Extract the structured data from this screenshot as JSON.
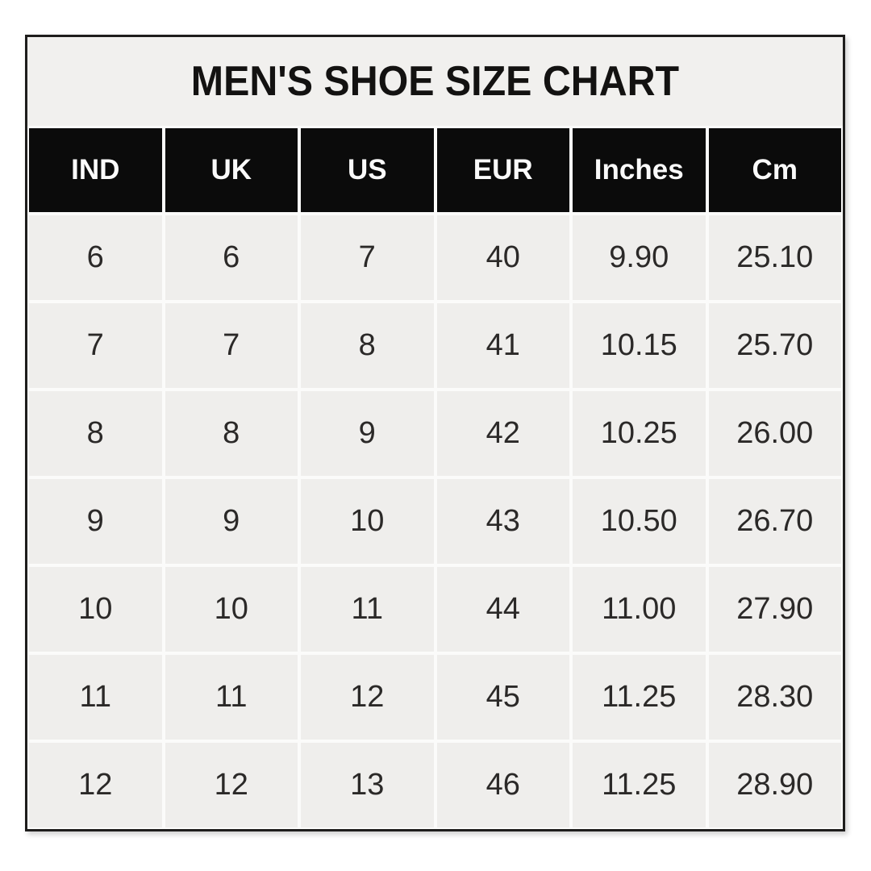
{
  "colors": {
    "page_bg": "#ffffff",
    "title_bg": "#f1f0ee",
    "title_text": "#131211",
    "header_bg": "#0b0b0b",
    "header_text": "#fafafa",
    "cell_bg": "#efeeec",
    "cell_text": "#2b2928",
    "gap": "#fbfbfa",
    "border": "#1e1d1c"
  },
  "chart_data": {
    "type": "table",
    "title": "MEN'S SHOE SIZE CHART",
    "columns": [
      "IND",
      "UK",
      "US",
      "EUR",
      "Inches",
      "Cm"
    ],
    "rows": [
      [
        "6",
        "6",
        "7",
        "40",
        "9.90",
        "25.10"
      ],
      [
        "7",
        "7",
        "8",
        "41",
        "10.15",
        "25.70"
      ],
      [
        "8",
        "8",
        "9",
        "42",
        "10.25",
        "26.00"
      ],
      [
        "9",
        "9",
        "10",
        "43",
        "10.50",
        "26.70"
      ],
      [
        "10",
        "10",
        "11",
        "44",
        "11.00",
        "27.90"
      ],
      [
        "11",
        "11",
        "12",
        "45",
        "11.25",
        "28.30"
      ],
      [
        "12",
        "12",
        "13",
        "46",
        "11.25",
        "28.90"
      ]
    ]
  }
}
